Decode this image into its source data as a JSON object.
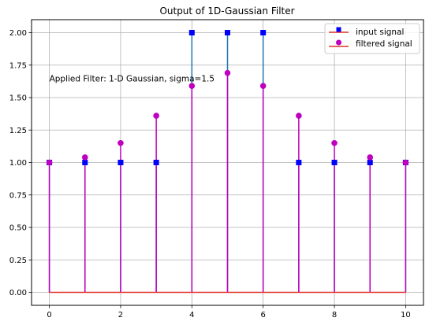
{
  "chart_data": {
    "type": "stem",
    "title": "Output of 1D-Gaussian Filter",
    "xlabel": "",
    "ylabel": "",
    "xlim": [
      -0.5,
      10.5
    ],
    "ylim": [
      -0.1,
      2.1
    ],
    "x_ticks": [
      0,
      2,
      4,
      6,
      8,
      10
    ],
    "y_ticks": [
      0.0,
      0.25,
      0.5,
      0.75,
      1.0,
      1.25,
      1.5,
      1.75,
      2.0
    ],
    "x_tick_labels": [
      "0",
      "2",
      "4",
      "6",
      "8",
      "10"
    ],
    "y_tick_labels": [
      "0.00",
      "0.25",
      "0.50",
      "0.75",
      "1.00",
      "1.25",
      "1.50",
      "1.75",
      "2.00"
    ],
    "grid": true,
    "legend_position": "top-right",
    "x": [
      0,
      1,
      2,
      3,
      4,
      5,
      6,
      7,
      8,
      9,
      10
    ],
    "series": [
      {
        "name": "input signal",
        "values": [
          1,
          1,
          1,
          1,
          2,
          2,
          2,
          1,
          1,
          1,
          1
        ],
        "line_color": "#1f77b4",
        "marker": "square",
        "marker_color": "#0000ff"
      },
      {
        "name": "filtered signal",
        "values": [
          1.0,
          1.04,
          1.15,
          1.36,
          1.59,
          1.69,
          1.59,
          1.36,
          1.15,
          1.04,
          1.0
        ],
        "line_color": "#bf00bf",
        "marker": "circle",
        "marker_color": "#bf00bf"
      }
    ],
    "baseline": {
      "value": 0,
      "color": "#e0302a"
    },
    "annotation": {
      "text": "Applied Filter: 1-D Gaussian, sigma=1.5",
      "x": 0,
      "y": 1.65
    }
  }
}
